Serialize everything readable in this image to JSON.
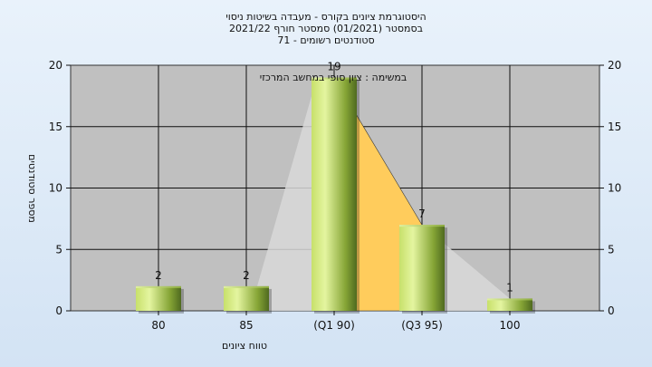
{
  "chart_data": {
    "type": "bar",
    "title": [
      "היסטוגרמת ציונים בקורס - מעבדה בשיטות ניסוי",
      "בסמסטר  (01/2021)  סמסטר חורף  2021/22",
      "סטודנטים רשומים - 71"
    ],
    "annotation": "במשימה : ציון סופי במחשב המרכזי",
    "categories": [
      "80",
      "85",
      "(Q1 90)",
      "(Q3 95)",
      "100"
    ],
    "values": [
      2,
      2,
      19,
      7,
      1
    ],
    "value_labels": [
      "2",
      "2",
      "19",
      "7",
      "1"
    ],
    "xlabel": "טווח ציונים",
    "ylabel": "מספר סטודנטים",
    "ylim": [
      0,
      20
    ],
    "yticks": [
      "0",
      "5",
      "10",
      "15",
      "20"
    ],
    "grid": true,
    "colors": {
      "plot_bg": "#c0c0c0",
      "bar_light": "#d9ef8c",
      "bar_dark": "#4f6a1f",
      "area": "#d8d8d8",
      "quartile_area": "#ffcc5c"
    }
  }
}
